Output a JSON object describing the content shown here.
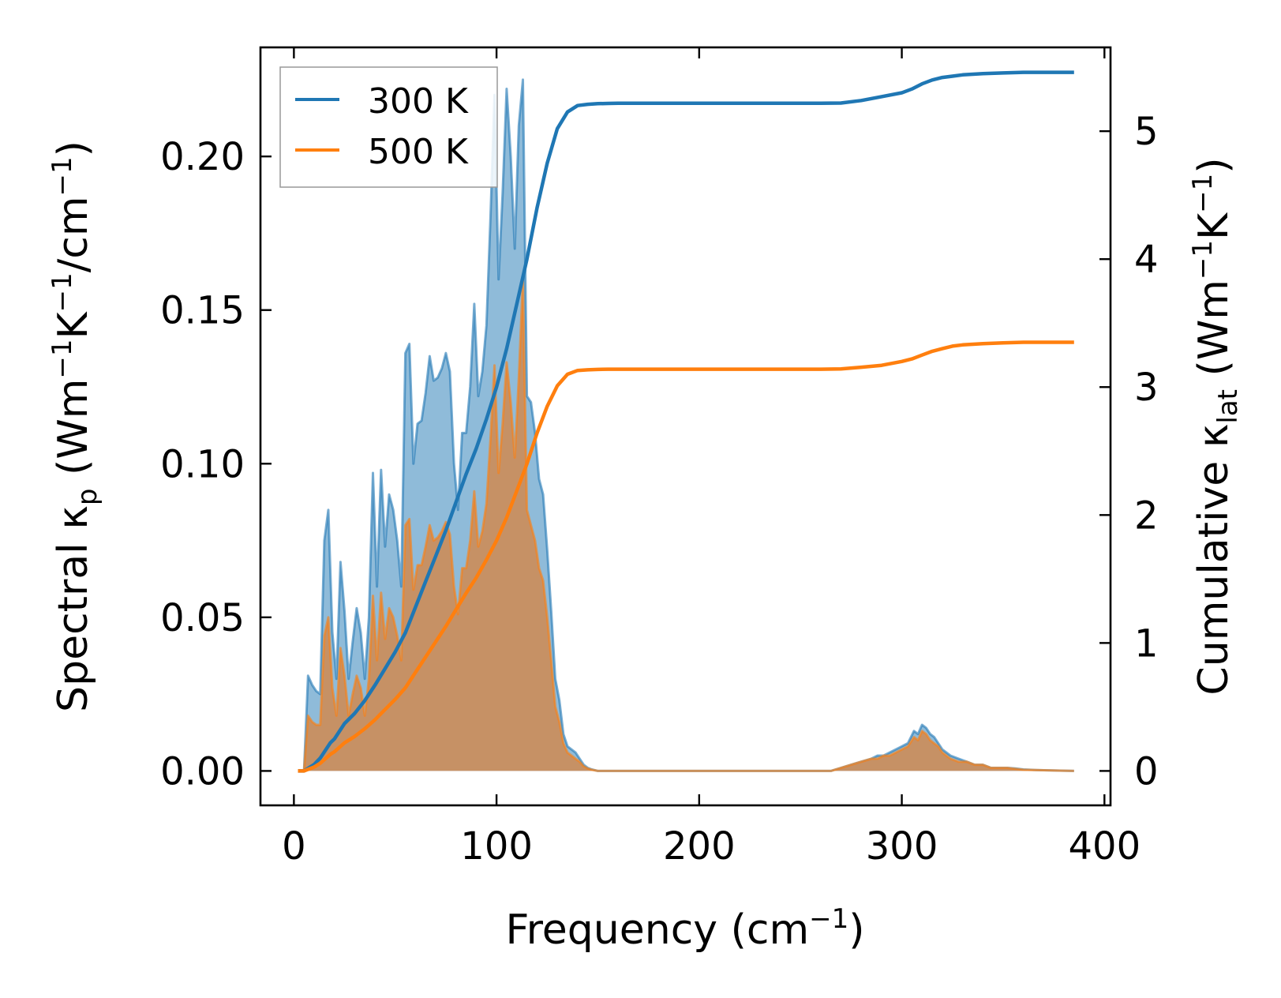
{
  "chart_data": {
    "type": "line",
    "xlabel": "Frequency (cm",
    "xlabel_sup": "−1",
    "xlabel_close": ")",
    "ylabel_left_prefix": "Spectral κ",
    "ylabel_left_sub": "p",
    "ylabel_left_units_1": " (Wm",
    "ylabel_left_sup_1": "−1",
    "ylabel_left_units_2": "K",
    "ylabel_left_sup_2": "−1",
    "ylabel_left_units_3": "/cm",
    "ylabel_left_sup_3": "−1",
    "ylabel_left_close": ")",
    "ylabel_right_prefix": "Cumulative κ",
    "ylabel_right_sub": "lat",
    "ylabel_right_units_1": " (Wm",
    "ylabel_right_sup_1": "−1",
    "ylabel_right_units_2": "K",
    "ylabel_right_sup_2": "−1",
    "ylabel_right_close": ")",
    "xlim": [
      -16.5,
      403
    ],
    "ylim_left": [
      -0.0112,
      0.2355
    ],
    "ylim_right": [
      -0.269,
      5.655
    ],
    "x_ticks": [
      0,
      100,
      200,
      300,
      400
    ],
    "x_tick_labels": [
      "0",
      "100",
      "200",
      "300",
      "400"
    ],
    "y_left_ticks": [
      0.0,
      0.05,
      0.1,
      0.15,
      0.2
    ],
    "y_left_tick_labels": [
      "0.00",
      "0.05",
      "0.10",
      "0.15",
      "0.20"
    ],
    "y_right_ticks": [
      0,
      1,
      2,
      3,
      4,
      5
    ],
    "y_right_tick_labels": [
      "0",
      "1",
      "2",
      "3",
      "4",
      "5"
    ],
    "legend_position": "top-left",
    "series": [
      {
        "name": "300 K",
        "color": "#1f77b4",
        "fill_color": "#1f77b4",
        "spectral_x": [
          2,
          5,
          7,
          9,
          11,
          13,
          15,
          17,
          19,
          21,
          23,
          25,
          27,
          29,
          31,
          33,
          35,
          37,
          39,
          41,
          43,
          45,
          47,
          49,
          51,
          53,
          55,
          57,
          59,
          61,
          63,
          65,
          67,
          69,
          71,
          73,
          75,
          77,
          79,
          81,
          83,
          85,
          87,
          89,
          91,
          93,
          95,
          97,
          99,
          101,
          103,
          105,
          107,
          109,
          111,
          113,
          115,
          117,
          119,
          121,
          123,
          125,
          127,
          129,
          131,
          133,
          135,
          137,
          139,
          141,
          143,
          145,
          147,
          150,
          155,
          160,
          200,
          265,
          270,
          275,
          280,
          285,
          288,
          291,
          294,
          297,
          300,
          303,
          306,
          308,
          310,
          312,
          314,
          316,
          318,
          320,
          324,
          328,
          332,
          336,
          340,
          344,
          348,
          352,
          356,
          360,
          366,
          372,
          378,
          385
        ],
        "spectral_y": [
          0,
          0,
          0.031,
          0.028,
          0.026,
          0.025,
          0.075,
          0.085,
          0.045,
          0.03,
          0.068,
          0.052,
          0.03,
          0.042,
          0.053,
          0.045,
          0.03,
          0.05,
          0.097,
          0.06,
          0.098,
          0.073,
          0.09,
          0.085,
          0.075,
          0.06,
          0.136,
          0.139,
          0.1,
          0.113,
          0.114,
          0.123,
          0.135,
          0.127,
          0.128,
          0.131,
          0.136,
          0.13,
          0.1,
          0.085,
          0.11,
          0.11,
          0.125,
          0.152,
          0.122,
          0.13,
          0.145,
          0.18,
          0.22,
          0.16,
          0.188,
          0.222,
          0.2,
          0.17,
          0.21,
          0.225,
          0.122,
          0.12,
          0.11,
          0.095,
          0.09,
          0.072,
          0.052,
          0.03,
          0.023,
          0.012,
          0.008,
          0.007,
          0.006,
          0.004,
          0.002,
          0.001,
          0.0005,
          0,
          0,
          0,
          0,
          0,
          0.001,
          0.002,
          0.003,
          0.004,
          0.005,
          0.005,
          0.006,
          0.007,
          0.008,
          0.009,
          0.013,
          0.012,
          0.015,
          0.014,
          0.012,
          0.011,
          0.009,
          0.007,
          0.005,
          0.004,
          0.003,
          0.002,
          0.002,
          0.001,
          0.001,
          0.001,
          0.0008,
          0.0005,
          0.0003,
          0.0002,
          0.0001,
          0
        ],
        "cumulative_x": [
          2,
          5,
          10,
          13,
          18,
          20,
          25,
          30,
          35,
          40,
          45,
          50,
          55,
          60,
          65,
          70,
          75,
          80,
          85,
          90,
          95,
          100,
          105,
          110,
          115,
          120,
          125,
          130,
          135,
          140,
          145,
          150,
          155,
          160,
          200,
          260,
          270,
          280,
          290,
          300,
          305,
          310,
          315,
          320,
          325,
          330,
          340,
          350,
          360,
          370,
          385
        ],
        "cumulative_y": [
          0,
          0,
          0.05,
          0.1,
          0.22,
          0.25,
          0.37,
          0.45,
          0.55,
          0.67,
          0.8,
          0.93,
          1.08,
          1.28,
          1.48,
          1.68,
          1.88,
          2.1,
          2.32,
          2.52,
          2.75,
          3.0,
          3.3,
          3.65,
          4.0,
          4.4,
          4.75,
          5.02,
          5.15,
          5.2,
          5.21,
          5.215,
          5.217,
          5.218,
          5.218,
          5.218,
          5.22,
          5.24,
          5.27,
          5.3,
          5.33,
          5.37,
          5.4,
          5.42,
          5.43,
          5.44,
          5.45,
          5.455,
          5.46,
          5.46,
          5.46
        ]
      },
      {
        "name": "500 K",
        "color": "#ff7f0e",
        "fill_color": "#d08a50",
        "spectral_x": [
          2,
          5,
          7,
          9,
          11,
          13,
          15,
          17,
          19,
          21,
          23,
          25,
          27,
          29,
          31,
          33,
          35,
          37,
          39,
          41,
          43,
          45,
          47,
          49,
          51,
          53,
          55,
          57,
          59,
          61,
          63,
          65,
          67,
          69,
          71,
          73,
          75,
          77,
          79,
          81,
          83,
          85,
          87,
          89,
          91,
          93,
          95,
          97,
          99,
          101,
          103,
          105,
          107,
          109,
          111,
          113,
          115,
          117,
          119,
          121,
          123,
          125,
          127,
          129,
          131,
          133,
          135,
          137,
          139,
          141,
          143,
          145,
          147,
          150,
          155,
          160,
          200,
          265,
          270,
          275,
          280,
          285,
          288,
          291,
          294,
          297,
          300,
          303,
          306,
          308,
          310,
          312,
          314,
          316,
          318,
          320,
          324,
          328,
          332,
          336,
          340,
          344,
          348,
          352,
          356,
          360,
          366,
          372,
          378,
          385
        ],
        "spectral_y": [
          0,
          0,
          0.018,
          0.016,
          0.015,
          0.015,
          0.044,
          0.05,
          0.027,
          0.018,
          0.04,
          0.031,
          0.018,
          0.025,
          0.031,
          0.027,
          0.018,
          0.03,
          0.057,
          0.036,
          0.058,
          0.043,
          0.053,
          0.05,
          0.044,
          0.036,
          0.08,
          0.082,
          0.059,
          0.067,
          0.067,
          0.073,
          0.08,
          0.075,
          0.076,
          0.078,
          0.081,
          0.077,
          0.06,
          0.051,
          0.066,
          0.066,
          0.075,
          0.091,
          0.073,
          0.078,
          0.087,
          0.108,
          0.132,
          0.097,
          0.113,
          0.133,
          0.12,
          0.102,
          0.128,
          0.16,
          0.085,
          0.08,
          0.075,
          0.066,
          0.062,
          0.05,
          0.036,
          0.021,
          0.016,
          0.009,
          0.006,
          0.005,
          0.004,
          0.003,
          0.0015,
          0.0008,
          0.0004,
          0,
          0,
          0,
          0,
          0,
          0.001,
          0.002,
          0.003,
          0.004,
          0.004,
          0.005,
          0.005,
          0.006,
          0.007,
          0.008,
          0.011,
          0.01,
          0.013,
          0.012,
          0.01,
          0.009,
          0.008,
          0.006,
          0.004,
          0.003,
          0.003,
          0.002,
          0.002,
          0.001,
          0.001,
          0.001,
          0.0007,
          0.0004,
          0.0003,
          0.0002,
          0.0001,
          0
        ],
        "cumulative_x": [
          2,
          5,
          10,
          13,
          18,
          20,
          25,
          30,
          35,
          40,
          45,
          50,
          55,
          60,
          65,
          70,
          75,
          80,
          85,
          90,
          95,
          100,
          105,
          110,
          115,
          120,
          125,
          130,
          135,
          140,
          145,
          150,
          155,
          160,
          200,
          260,
          270,
          280,
          290,
          300,
          305,
          310,
          315,
          320,
          325,
          330,
          340,
          350,
          360,
          370,
          385
        ],
        "cumulative_y": [
          0,
          0,
          0.03,
          0.06,
          0.13,
          0.15,
          0.22,
          0.27,
          0.33,
          0.4,
          0.48,
          0.56,
          0.65,
          0.77,
          0.89,
          1.01,
          1.13,
          1.26,
          1.39,
          1.51,
          1.65,
          1.8,
          1.98,
          2.19,
          2.4,
          2.64,
          2.85,
          3.01,
          3.1,
          3.13,
          3.135,
          3.138,
          3.14,
          3.14,
          3.14,
          3.14,
          3.142,
          3.155,
          3.17,
          3.2,
          3.22,
          3.25,
          3.28,
          3.3,
          3.32,
          3.33,
          3.34,
          3.345,
          3.35,
          3.35,
          3.35
        ]
      }
    ]
  }
}
